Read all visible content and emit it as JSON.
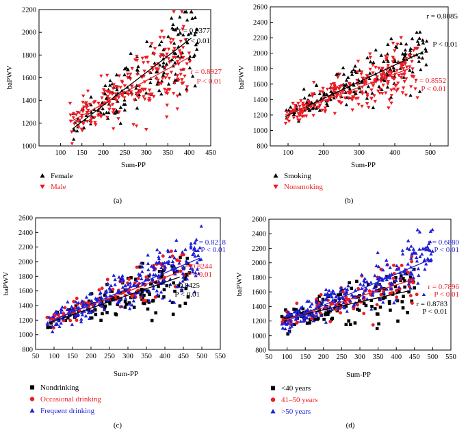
{
  "chart_data": [
    {
      "panel": "a",
      "type": "scatter",
      "caption": "(a)",
      "xlabel": "Sum-PP",
      "ylabel": "baPWV",
      "xlim": [
        50,
        450
      ],
      "ylim": [
        1000,
        2200
      ],
      "xticks": [
        100,
        150,
        200,
        250,
        300,
        350,
        400,
        450
      ],
      "yticks": [
        1000,
        1200,
        1400,
        1600,
        1800,
        2000,
        2200
      ],
      "series": [
        {
          "name": "Female",
          "marker": "triangle-up",
          "color": "#000000",
          "x_range": [
            128,
            420
          ],
          "fit": [
            [
              128,
              1150
            ],
            [
              405,
              1950
            ]
          ],
          "n": 170,
          "r_text": "r = 0.9377",
          "p_text": "P < 0.01"
        },
        {
          "name": "Male",
          "marker": "triangle-down",
          "color": "#ee1c24",
          "x_range": [
            122,
            402
          ],
          "fit": [
            [
              122,
              1210
            ],
            [
              400,
              1780
            ]
          ],
          "n": 230,
          "r_text": "r = 0.8927",
          "p_text": "P < 0.01"
        }
      ]
    },
    {
      "panel": "b",
      "type": "scatter",
      "caption": "(b)",
      "xlabel": "Sum-PP",
      "ylabel": "baPWV",
      "xlim": [
        50,
        550
      ],
      "ylim": [
        800,
        2600
      ],
      "xticks": [
        100,
        200,
        300,
        400,
        500
      ],
      "yticks": [
        800,
        1000,
        1200,
        1400,
        1600,
        1800,
        2000,
        2200,
        2400,
        2600
      ],
      "series": [
        {
          "name": "Smoking",
          "marker": "triangle-up",
          "color": "#000000",
          "x_range": [
            92,
            490
          ],
          "fit": [
            [
              92,
              1180
            ],
            [
              480,
              2020
            ]
          ],
          "n": 190,
          "r_text": "r = 0.8085",
          "p_text": "P < 0.01"
        },
        {
          "name": "Nonsmoking",
          "marker": "triangle-down",
          "color": "#ee1c24",
          "x_range": [
            92,
            465
          ],
          "fit": [
            [
              92,
              1200
            ],
            [
              440,
              1800
            ]
          ],
          "n": 260,
          "r_text": "r = 0.8552",
          "p_text": "P < 0.01"
        }
      ]
    },
    {
      "panel": "c",
      "type": "scatter",
      "caption": "(c)",
      "xlabel": "Sum-PP",
      "ylabel": "baPWV",
      "xlim": [
        50,
        550
      ],
      "ylim": [
        800,
        2600
      ],
      "xticks": [
        50,
        100,
        150,
        200,
        250,
        300,
        350,
        400,
        450,
        500,
        550
      ],
      "yticks": [
        800,
        1000,
        1200,
        1400,
        1600,
        1800,
        2000,
        2200,
        2400,
        2600
      ],
      "series": [
        {
          "name": "Nondrinking",
          "marker": "square",
          "color": "#000000",
          "x_range": [
            80,
            470
          ],
          "fit": [
            [
              85,
              1160
            ],
            [
              440,
              1790
            ]
          ],
          "n": 140,
          "r_text": "r = 0.8425",
          "p_text": "P < 0.01"
        },
        {
          "name": "Occasional drinking",
          "marker": "circle",
          "color": "#ee1c24",
          "x_range": [
            80,
            470
          ],
          "fit": [
            [
              85,
              1190
            ],
            [
              440,
              1860
            ]
          ],
          "n": 90,
          "r_text": "r = 0.8244",
          "p_text": "P < 0.01"
        },
        {
          "name": "Frequent drinking",
          "marker": "triangle-up",
          "color": "#1f1fd6",
          "x_range": [
            80,
            500
          ],
          "fit": [
            [
              85,
              1170
            ],
            [
              495,
              2050
            ]
          ],
          "n": 260,
          "r_text": "r = 0.8218",
          "p_text": "P < 0.01"
        }
      ]
    },
    {
      "panel": "d",
      "type": "scatter",
      "caption": "(d)",
      "xlabel": "Sum-PP",
      "ylabel": "baPWV",
      "xlim": [
        50,
        550
      ],
      "ylim": [
        800,
        2600
      ],
      "xticks": [
        50,
        100,
        150,
        200,
        250,
        300,
        350,
        400,
        450,
        500,
        550
      ],
      "yticks": [
        800,
        1000,
        1200,
        1400,
        1600,
        1800,
        2000,
        2200,
        2400,
        2600
      ],
      "series": [
        {
          "name": "<40 years",
          "marker": "square",
          "color": "#000000",
          "x_range": [
            85,
            450
          ],
          "fit": [
            [
              90,
              1230
            ],
            [
              440,
              1620
            ]
          ],
          "n": 140,
          "r_text": "r = 0.8783",
          "p_text": "P < 0.01"
        },
        {
          "name": "41–50 years",
          "marker": "circle",
          "color": "#ee1c24",
          "x_range": [
            85,
            460
          ],
          "fit": [
            [
              90,
              1210
            ],
            [
              440,
              1760
            ]
          ],
          "n": 90,
          "r_text": "r = 0.7896",
          "p_text": "P < 0.01"
        },
        {
          "name": ">50 years",
          "marker": "triangle-up",
          "color": "#1f1fd6",
          "x_range": [
            85,
            500
          ],
          "fit": [
            [
              90,
              1180
            ],
            [
              495,
              2050
            ]
          ],
          "n": 260,
          "r_text": "r = 0.6880",
          "p_text": "P < 0.01"
        }
      ]
    }
  ]
}
